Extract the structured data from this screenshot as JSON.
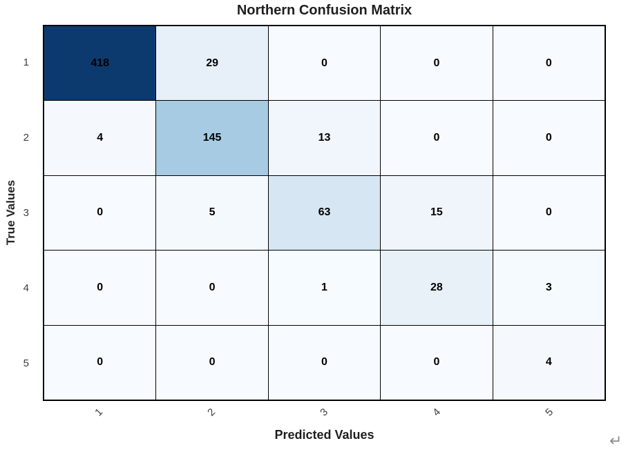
{
  "chart_data": {
    "type": "heatmap",
    "title": "Northern Confusion Matrix",
    "xlabel": "Predicted Values",
    "ylabel": "True Values",
    "x_tick_labels": [
      "1",
      "2",
      "3",
      "4",
      "5"
    ],
    "y_tick_labels": [
      "1",
      "2",
      "3",
      "4",
      "5"
    ],
    "matrix": [
      [
        418,
        29,
        0,
        0,
        0
      ],
      [
        4,
        145,
        13,
        0,
        0
      ],
      [
        0,
        5,
        63,
        15,
        0
      ],
      [
        0,
        0,
        1,
        28,
        3
      ],
      [
        0,
        0,
        0,
        0,
        4
      ]
    ],
    "vmin": 0,
    "vmax": 418,
    "colormap": {
      "name": "Blues",
      "stops": [
        {
          "t": 0.0,
          "color": "#f7fbff"
        },
        {
          "t": 0.07,
          "color": "#e7f0f8"
        },
        {
          "t": 0.151,
          "color": "#d6e6f2"
        },
        {
          "t": 0.347,
          "color": "#a7cbe3"
        },
        {
          "t": 1.0,
          "color": "#0d3a6e"
        }
      ]
    },
    "cell_text_color": "#000000",
    "grid_line_color": "#000000",
    "x_tick_rotation_deg": 45,
    "legend": "none",
    "grid": "cell-borders"
  },
  "annotations": {
    "return_mark": "↵",
    "return_mark_color": "#8c8c8c"
  }
}
